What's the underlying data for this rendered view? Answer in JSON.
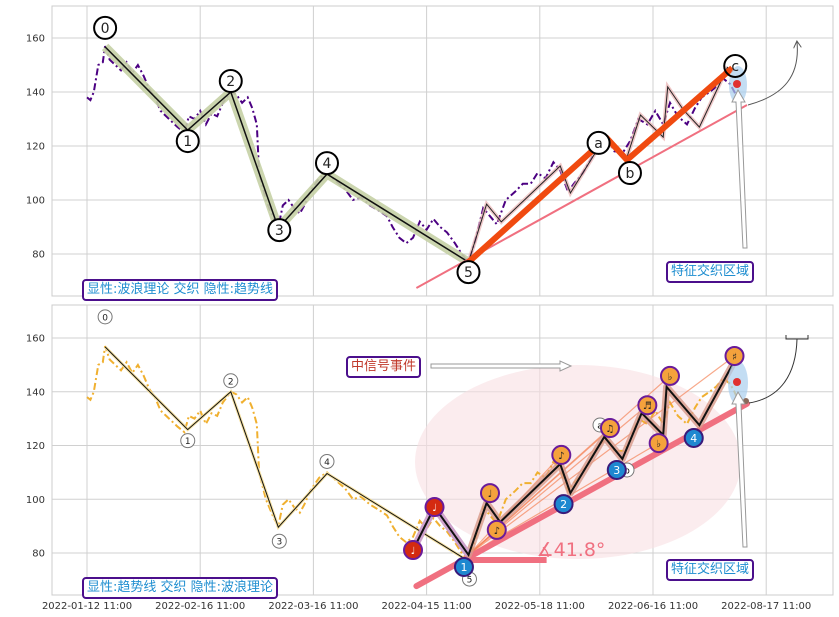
{
  "chart_data": {
    "type": "line",
    "x_ticks": [
      0,
      100,
      200,
      300,
      400,
      500,
      600
    ],
    "x_tick_labels": [
      "2022-01-12 11:00",
      "2022-02-16 11:00",
      "2022-03-16 11:00",
      "2022-04-15 11:00",
      "2022-05-18 11:00",
      "2022-06-16 11:00",
      "2022-08-17 11:00"
    ],
    "y_ticks": [
      80,
      100,
      120,
      140,
      160
    ],
    "ylim": [
      64,
      172
    ],
    "grid": true,
    "price": [
      [
        0,
        138
      ],
      [
        3,
        137
      ],
      [
        6,
        140
      ],
      [
        10,
        150
      ],
      [
        14,
        151
      ],
      [
        16,
        157
      ],
      [
        20,
        152
      ],
      [
        25,
        150
      ],
      [
        30,
        148
      ],
      [
        35,
        151
      ],
      [
        40,
        147
      ],
      [
        45,
        150
      ],
      [
        50,
        146
      ],
      [
        55,
        141
      ],
      [
        60,
        138
      ],
      [
        65,
        133
      ],
      [
        70,
        131
      ],
      [
        75,
        129
      ],
      [
        80,
        127
      ],
      [
        86,
        125
      ],
      [
        90,
        131
      ],
      [
        95,
        130
      ],
      [
        100,
        133
      ],
      [
        105,
        128
      ],
      [
        110,
        132
      ],
      [
        115,
        131
      ],
      [
        120,
        136
      ],
      [
        127,
        140
      ],
      [
        132,
        139
      ],
      [
        137,
        136
      ],
      [
        142,
        138
      ],
      [
        146,
        134
      ],
      [
        150,
        128
      ],
      [
        152,
        110
      ],
      [
        158,
        100
      ],
      [
        165,
        93
      ],
      [
        169,
        90
      ],
      [
        173,
        98
      ],
      [
        178,
        100
      ],
      [
        183,
        97
      ],
      [
        188,
        95
      ],
      [
        192,
        98
      ],
      [
        197,
        103
      ],
      [
        205,
        108
      ],
      [
        212,
        110
      ],
      [
        220,
        107
      ],
      [
        228,
        104
      ],
      [
        235,
        100
      ],
      [
        242,
        101
      ],
      [
        250,
        98
      ],
      [
        258,
        96
      ],
      [
        265,
        94
      ],
      [
        270,
        90
      ],
      [
        276,
        86
      ],
      [
        282,
        84
      ],
      [
        288,
        86
      ],
      [
        294,
        92
      ],
      [
        300,
        89
      ],
      [
        306,
        93
      ],
      [
        312,
        90
      ],
      [
        318,
        88
      ],
      [
        325,
        84
      ],
      [
        331,
        80
      ],
      [
        337,
        77
      ],
      [
        343,
        85
      ],
      [
        350,
        97
      ],
      [
        356,
        94
      ],
      [
        362,
        91
      ],
      [
        370,
        100
      ],
      [
        378,
        103
      ],
      [
        385,
        106
      ],
      [
        392,
        106
      ],
      [
        398,
        110
      ],
      [
        405,
        108
      ],
      [
        412,
        114
      ],
      [
        418,
        111
      ],
      [
        425,
        103
      ],
      [
        430,
        106
      ],
      [
        438,
        110
      ],
      [
        445,
        115
      ],
      [
        452,
        120
      ],
      [
        459,
        123
      ],
      [
        466,
        118
      ],
      [
        474,
        118
      ],
      [
        480,
        122
      ],
      [
        487,
        130
      ],
      [
        495,
        128
      ],
      [
        502,
        133
      ],
      [
        509,
        128
      ],
      [
        515,
        136
      ],
      [
        522,
        131
      ],
      [
        530,
        128
      ],
      [
        537,
        134
      ],
      [
        543,
        138
      ],
      [
        550,
        140
      ],
      [
        556,
        142
      ],
      [
        562,
        145
      ],
      [
        568,
        143
      ],
      [
        572,
        140
      ],
      [
        576,
        136
      ]
    ],
    "waves": [
      {
        "label": "0",
        "x": 16,
        "y": 156.7
      },
      {
        "label": "1",
        "x": 89,
        "y": 125.9
      },
      {
        "label": "2",
        "x": 127,
        "y": 140
      },
      {
        "label": "3",
        "x": 169,
        "y": 89.6
      },
      {
        "label": "4",
        "x": 212,
        "y": 109.6
      },
      {
        "label": "5",
        "x": 337,
        "y": 77
      }
    ],
    "correction": [
      {
        "label": "a",
        "x": 459,
        "y": 123
      },
      {
        "label": "b",
        "x": 477,
        "y": 114.8
      },
      {
        "label": "c",
        "x": 570,
        "y": 148.9
      }
    ],
    "sub_waves": [
      [
        337,
        77
      ],
      [
        353,
        98.5
      ],
      [
        366,
        91.9
      ],
      [
        418,
        112.6
      ],
      [
        427,
        102.6
      ],
      [
        456,
        122.2
      ],
      [
        477,
        115.9
      ],
      [
        489,
        131.5
      ],
      [
        509,
        123.3
      ],
      [
        513,
        141.9
      ],
      [
        527,
        133.3
      ],
      [
        541,
        127
      ],
      [
        566,
        149.3
      ]
    ],
    "panels": [
      {
        "legend_text": "显性:波浪理论 交织 隐性:趋势线",
        "zone_label": "特征交织区域",
        "trendline": [
          [
            291,
            67.4
          ],
          [
            583,
            135.2
          ]
        ]
      },
      {
        "legend_text": "显性:趋势线 交织 隐性:波浪理论",
        "zone_label": "特征交织区域",
        "signal_label": "中信号事件",
        "angle_label": "∡41.8°",
        "angle_value": 41.8,
        "trendline": [
          [
            291,
            67.7
          ],
          [
            583,
            135.5
          ]
        ],
        "angle_base": [
          [
            336,
            77.4
          ],
          [
            406,
            77.4
          ]
        ],
        "zigzag": [
          [
            288,
            81.1
          ],
          [
            307,
            97.1
          ],
          [
            337,
            79.3
          ],
          [
            353,
            98.6
          ],
          [
            365,
            91.5
          ],
          [
            418,
            113.1
          ],
          [
            427,
            102.3
          ],
          [
            457,
            123.2
          ],
          [
            473,
            115
          ],
          [
            490,
            132.1
          ],
          [
            509,
            123.9
          ],
          [
            512,
            141.8
          ],
          [
            541,
            127.6
          ],
          [
            571,
            150.7
          ]
        ],
        "notes": [
          {
            "glyph": "♩",
            "x": 288,
            "y": 81.1,
            "color": "#d42a10"
          },
          {
            "glyph": "♩",
            "x": 307,
            "y": 97.1,
            "color": "#d42a10"
          },
          {
            "glyph": "♩",
            "x": 356,
            "y": 102.3,
            "color": "#f4a23c"
          },
          {
            "glyph": "♪",
            "x": 362,
            "y": 88.6,
            "color": "#f4a23c"
          },
          {
            "glyph": "♪",
            "x": 419,
            "y": 116.5,
            "color": "#f4a23c"
          },
          {
            "glyph": "♫",
            "x": 462,
            "y": 126.5,
            "color": "#f4a23c"
          },
          {
            "glyph": "♬",
            "x": 495,
            "y": 135,
            "color": "#f4a23c"
          },
          {
            "glyph": "♭",
            "x": 505,
            "y": 120.9,
            "color": "#f4a23c"
          },
          {
            "glyph": "♭",
            "x": 515,
            "y": 145.9,
            "color": "#f4a23c"
          },
          {
            "glyph": "♯",
            "x": 572,
            "y": 153.3,
            "color": "#f4a23c"
          }
        ],
        "blue_points": [
          {
            "label": "1",
            "x": 333,
            "y": 74.8
          },
          {
            "label": "2",
            "x": 421,
            "y": 98.2
          },
          {
            "label": "3",
            "x": 468,
            "y": 110.9
          },
          {
            "label": "4",
            "x": 536,
            "y": 122.8
          }
        ]
      }
    ],
    "colors": {
      "price_top": "#4b0082",
      "price_bottom": "#f0b030",
      "wave_shadow": "#c5d0a5",
      "trend": "#f07080",
      "impulse": "#f04a10",
      "note_border": "#6a1b9a",
      "blue_point": "#1e88d0"
    }
  }
}
